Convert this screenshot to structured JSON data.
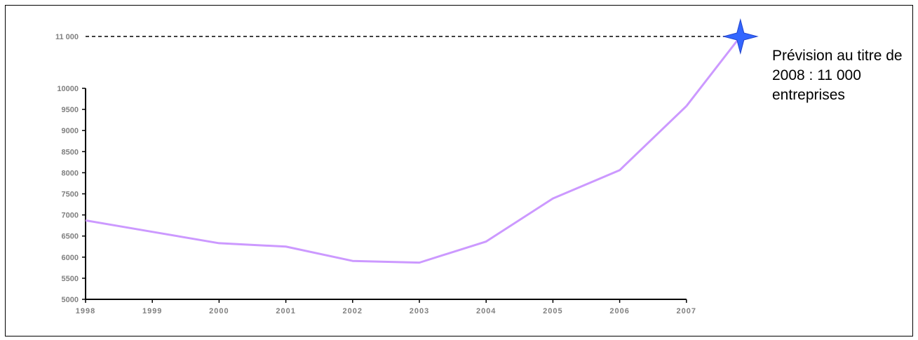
{
  "chart_data": {
    "type": "line",
    "title": "",
    "xlabel": "",
    "ylabel": "",
    "x": [
      "1998",
      "1999",
      "2000",
      "2001",
      "2002",
      "2003",
      "2004",
      "2005",
      "2006",
      "2007"
    ],
    "series": [
      {
        "values": [
          6870,
          6600,
          6330,
          6250,
          5910,
          5870,
          6370,
          7390,
          8060,
          9580
        ],
        "color": "#cc99ff"
      }
    ],
    "ylim": [
      5000,
      10000
    ],
    "yticks": [
      5000,
      5500,
      6000,
      6500,
      7000,
      7500,
      8000,
      8500,
      9000,
      9500,
      10000
    ],
    "ytick_labels": [
      "5000",
      "5500",
      "6000",
      "6500",
      "7000",
      "7500",
      "8000",
      "8500",
      "9000",
      "9500",
      "10000"
    ],
    "forecast": {
      "x": "2008",
      "value": 11000,
      "label": "11 000",
      "marker": "star-icon",
      "color": "#3366ff",
      "line_style": "dashed"
    },
    "annotation": "Prévision au titre de 2008 : 11 000 entreprises",
    "grid": false,
    "legend": "none"
  }
}
